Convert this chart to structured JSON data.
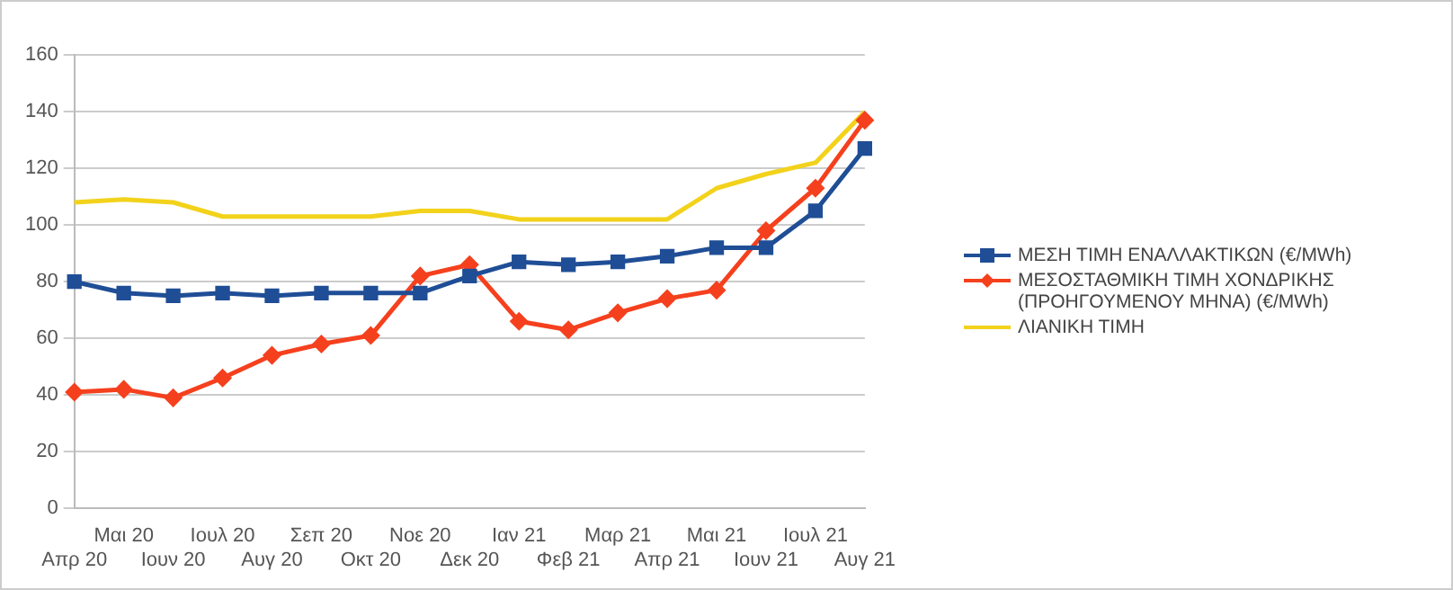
{
  "chart_data": {
    "type": "line",
    "categories": [
      "Απρ 20",
      "Μαι 20",
      "Ιουν 20",
      "Ιουλ 20",
      "Αυγ 20",
      "Σεπ 20",
      "Οκτ 20",
      "Νοε 20",
      "Δεκ 20",
      "Ιαν 21",
      "Φεβ 21",
      "Μαρ 21",
      "Απρ 21",
      "Μαι 21",
      "Ιουν 21",
      "Ιουλ 21",
      "Αυγ 21"
    ],
    "series": [
      {
        "name": "ΜΕΣΗ ΤΙΜΗ ΕΝΑΛΛΑΚΤΙΚΩΝ (€/MWh)",
        "color": "#1f4e96",
        "marker": "square",
        "values": [
          80,
          76,
          75,
          76,
          75,
          76,
          76,
          76,
          82,
          87,
          86,
          87,
          89,
          92,
          92,
          105,
          127
        ]
      },
      {
        "name": "ΜΕΣΟΣΤΑΘΜΙΚΗ ΤΙΜΗ ΧΟΝΔΡΙΚΗΣ (ΠΡΟΗΓΟΥΜΕΝΟΥ ΜΗΝΑ)  (€/MWh)",
        "color": "#f5401e",
        "marker": "diamond",
        "values": [
          41,
          42,
          39,
          46,
          54,
          58,
          61,
          82,
          86,
          66,
          63,
          69,
          74,
          77,
          98,
          113,
          137
        ]
      },
      {
        "name": "ΛΙΑΝΙΚΗ ΤΙΜΗ",
        "color": "#f2d21b",
        "marker": "none",
        "values": [
          108,
          109,
          108,
          103,
          103,
          103,
          103,
          105,
          105,
          102,
          102,
          102,
          102,
          113,
          118,
          122,
          140
        ]
      }
    ],
    "ylim": [
      0,
      160
    ],
    "yticks": [
      0,
      20,
      40,
      60,
      80,
      100,
      120,
      140,
      160
    ],
    "grid": "y",
    "legend": "right"
  }
}
